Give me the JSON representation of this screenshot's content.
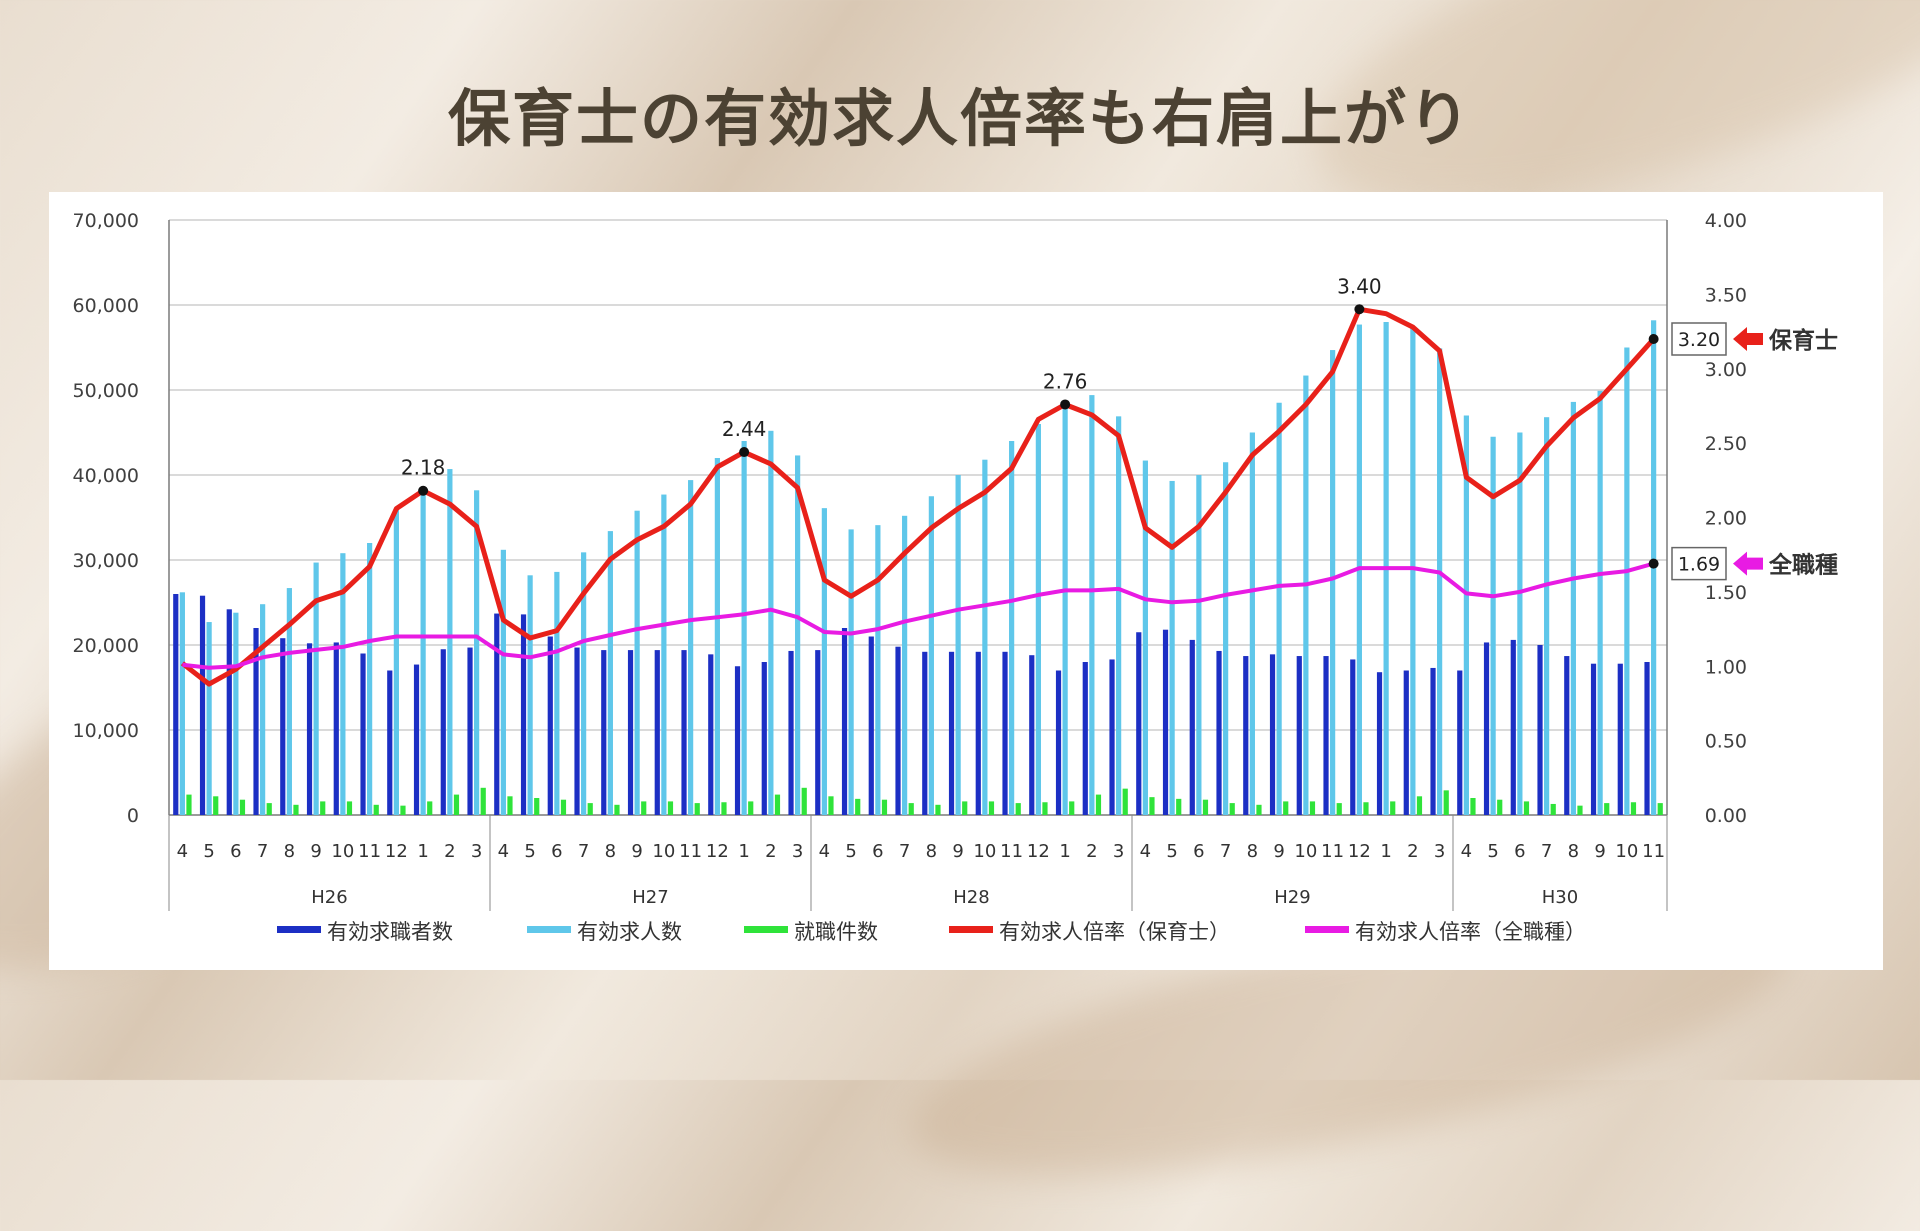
{
  "title": "保育士の有効求人倍率も右肩上がり",
  "colors": {
    "seekers": "#1c2fc4",
    "openings": "#5fc7ea",
    "placements": "#2fe33a",
    "ratio_hoikushi": "#e8211a",
    "ratio_all": "#e81be3",
    "callout_arrow_hoikushi": "#e8211a",
    "callout_arrow_all": "#e81be3"
  },
  "chart_data": {
    "type": "bar",
    "left_axis": {
      "range": [
        0,
        70000
      ],
      "ticks": [
        "0",
        "10,000",
        "20,000",
        "30,000",
        "40,000",
        "50,000",
        "60,000",
        "70,000"
      ]
    },
    "right_axis": {
      "range": [
        0,
        4
      ],
      "ticks": [
        "0.00",
        "0.50",
        "1.00",
        "1.50",
        "2.00",
        "2.50",
        "3.00",
        "3.50",
        "4.00"
      ]
    },
    "grid": true,
    "legend_position": "bottom",
    "categories": [
      "4",
      "5",
      "6",
      "7",
      "8",
      "9",
      "10",
      "11",
      "12",
      "1",
      "2",
      "3",
      "4",
      "5",
      "6",
      "7",
      "8",
      "9",
      "10",
      "11",
      "12",
      "1",
      "2",
      "3",
      "4",
      "5",
      "6",
      "7",
      "8",
      "9",
      "10",
      "11",
      "12",
      "1",
      "2",
      "3",
      "4",
      "5",
      "6",
      "7",
      "8",
      "9",
      "10",
      "11",
      "12",
      "1",
      "2",
      "3",
      "4",
      "5",
      "6",
      "7",
      "8",
      "9",
      "10",
      "11"
    ],
    "year_groups": [
      {
        "label": "H26",
        "count": 12
      },
      {
        "label": "H27",
        "count": 12
      },
      {
        "label": "H28",
        "count": 12
      },
      {
        "label": "H29",
        "count": 12
      },
      {
        "label": "H30",
        "count": 8
      }
    ],
    "series": [
      {
        "name": "有効求職者数",
        "kind": "bar",
        "axis": "left",
        "color_key": "seekers",
        "values": [
          26000,
          25800,
          24200,
          22000,
          20800,
          20200,
          20300,
          19000,
          17000,
          17700,
          19500,
          19700,
          23700,
          23600,
          21000,
          19700,
          19400,
          19400,
          19400,
          19400,
          18900,
          17500,
          18000,
          19300,
          19400,
          22000,
          21000,
          19800,
          19200,
          19200,
          19200,
          19200,
          18800,
          17000,
          18000,
          18300,
          21500,
          21800,
          20600,
          19300,
          18700,
          18900,
          18700,
          18700,
          18300,
          16800,
          17000,
          17300,
          17000,
          20300,
          20600,
          20000,
          18700,
          17800,
          17800,
          18000
        ]
      },
      {
        "name": "有効求人数",
        "kind": "bar",
        "axis": "left",
        "color_key": "openings",
        "values": [
          26200,
          22700,
          23800,
          24800,
          26700,
          29700,
          30800,
          32000,
          36000,
          38000,
          40700,
          38200,
          31200,
          28200,
          28600,
          30900,
          33400,
          35800,
          37700,
          39400,
          42000,
          44000,
          45200,
          42300,
          36100,
          33600,
          34100,
          35200,
          37500,
          40000,
          41800,
          44000,
          46000,
          48300,
          49400,
          46900,
          41700,
          39300,
          40000,
          41500,
          45000,
          48500,
          51700,
          54700,
          57700,
          58000,
          57400,
          54900,
          47000,
          44500,
          45000,
          46800,
          48600,
          49900,
          55000,
          58200
        ]
      },
      {
        "name": "就職件数",
        "kind": "bar",
        "axis": "left",
        "color_key": "placements",
        "values": [
          2400,
          2200,
          1800,
          1400,
          1200,
          1600,
          1600,
          1200,
          1100,
          1600,
          2400,
          3200,
          2200,
          2000,
          1800,
          1400,
          1200,
          1600,
          1600,
          1400,
          1500,
          1600,
          2400,
          3200,
          2200,
          1900,
          1800,
          1400,
          1200,
          1600,
          1600,
          1400,
          1500,
          1600,
          2400,
          3100,
          2100,
          1900,
          1800,
          1400,
          1200,
          1600,
          1600,
          1400,
          1500,
          1600,
          2200,
          2900,
          2000,
          1800,
          1600,
          1300,
          1100,
          1400,
          1500,
          1400
        ]
      },
      {
        "name": "有効求人倍率（保育士）",
        "kind": "line",
        "axis": "right",
        "color_key": "ratio_hoikushi",
        "values": [
          1.02,
          0.88,
          0.98,
          1.13,
          1.28,
          1.44,
          1.5,
          1.67,
          2.06,
          2.18,
          2.09,
          1.94,
          1.31,
          1.19,
          1.24,
          1.49,
          1.72,
          1.85,
          1.94,
          2.09,
          2.34,
          2.44,
          2.36,
          2.2,
          1.58,
          1.47,
          1.58,
          1.76,
          1.93,
          2.06,
          2.17,
          2.33,
          2.66,
          2.76,
          2.69,
          2.55,
          1.93,
          1.8,
          1.94,
          2.17,
          2.42,
          2.58,
          2.76,
          2.98,
          3.4,
          3.37,
          3.28,
          3.12,
          2.27,
          2.14,
          2.25,
          2.48,
          2.67,
          2.8,
          3.0,
          3.2
        ]
      },
      {
        "name": "有効求人倍率（全職種）",
        "kind": "line",
        "axis": "right",
        "color_key": "ratio_all",
        "values": [
          1.01,
          0.99,
          1.0,
          1.06,
          1.09,
          1.11,
          1.13,
          1.17,
          1.2,
          1.2,
          1.2,
          1.2,
          1.08,
          1.06,
          1.1,
          1.17,
          1.21,
          1.25,
          1.28,
          1.31,
          1.33,
          1.35,
          1.38,
          1.33,
          1.23,
          1.22,
          1.25,
          1.3,
          1.34,
          1.38,
          1.41,
          1.44,
          1.48,
          1.51,
          1.51,
          1.52,
          1.45,
          1.43,
          1.44,
          1.48,
          1.51,
          1.54,
          1.55,
          1.59,
          1.66,
          1.66,
          1.66,
          1.63,
          1.49,
          1.47,
          1.5,
          1.55,
          1.59,
          1.62,
          1.64,
          1.69
        ]
      }
    ],
    "peak_labels": [
      {
        "index": 9,
        "text": "2.18"
      },
      {
        "index": 21,
        "text": "2.44"
      },
      {
        "index": 33,
        "text": "2.76"
      },
      {
        "index": 44,
        "text": "3.40"
      }
    ],
    "end_labels": [
      {
        "series_index": 3,
        "value_text": "3.20",
        "callout": "保育士"
      },
      {
        "series_index": 4,
        "value_text": "1.69",
        "callout": "全職種"
      }
    ]
  }
}
